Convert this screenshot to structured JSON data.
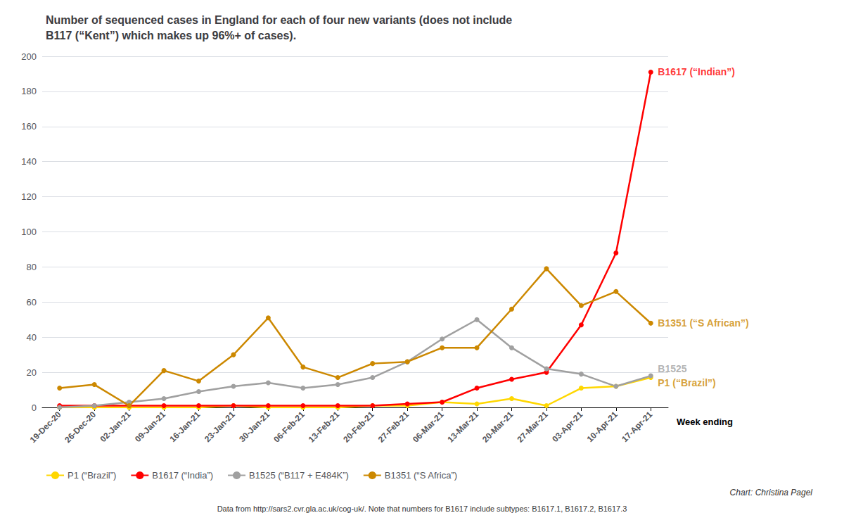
{
  "chart_data": {
    "type": "line",
    "title": "Number of sequenced cases in England for each of four new variants (does not include\nB117 (“Kent”) which makes up 96%+ of cases).",
    "xlabel": "Week ending",
    "categories": [
      "19-Dec-20",
      "26-Dec-20",
      "02-Jan-21",
      "09-Jan-21",
      "16-Jan-21",
      "23-Jan-21",
      "30-Jan-21",
      "06-Feb-21",
      "13-Feb-21",
      "20-Feb-21",
      "27-Feb-21",
      "06-Mar-21",
      "13-Mar-21",
      "20-Mar-21",
      "27-Mar-21",
      "03-Apr-21",
      "10-Apr-21",
      "17-Apr-21"
    ],
    "series": [
      {
        "name": "P1 (“Brazil”)",
        "color": "#FFD700",
        "marker": "circle",
        "values": [
          0,
          0,
          0,
          0,
          0,
          1,
          0,
          0,
          0,
          1,
          1,
          3,
          2,
          5,
          1,
          11,
          12,
          17
        ]
      },
      {
        "name": "B1617 (“India”)",
        "color": "#FF0000",
        "marker": "circle",
        "values": [
          1,
          1,
          1,
          1,
          1,
          1,
          1,
          1,
          1,
          1,
          2,
          3,
          11,
          16,
          20,
          47,
          88,
          191
        ]
      },
      {
        "name": "B1525 (“B117 + E484K”)",
        "color": "#A0A0A0",
        "marker": "circle",
        "values": [
          0,
          1,
          3,
          5,
          9,
          12,
          14,
          11,
          13,
          17,
          26,
          39,
          50,
          34,
          22,
          19,
          12,
          18
        ]
      },
      {
        "name": "B1351 (“S Africa”)",
        "color": "#CC8800",
        "marker": "circle",
        "values": [
          11,
          13,
          1,
          21,
          15,
          30,
          51,
          23,
          17,
          25,
          26,
          34,
          34,
          56,
          79,
          58,
          66,
          48
        ]
      }
    ],
    "annotations": [
      {
        "text": "B1617 (“Indian”)",
        "x": "17-Apr-21",
        "y": 191,
        "color": "#FF0000"
      },
      {
        "text": "B1351 (“S African”)",
        "x": "17-Apr-21",
        "y": 48,
        "color": "#CC8800"
      },
      {
        "text": "B1525",
        "x": "17-Apr-21",
        "y": 22,
        "color": "#A0A0A0"
      },
      {
        "text": "P1 (“Brazil”)",
        "x": "17-Apr-21",
        "y": 14,
        "color": "#CC8800"
      }
    ],
    "footer_credit": "Chart: Christina Pagel",
    "footer_data": "Data from http://sars2.cvr.gla.ac.uk/cog-uk/. Note that numbers for B1617 include subtypes: B1617.1, B1617.2, B1617.3",
    "ylim": [
      0,
      200
    ],
    "yticks": [
      0,
      20,
      40,
      60,
      80,
      100,
      120,
      140,
      160,
      180,
      200
    ],
    "grid": true,
    "legend": "lower left"
  }
}
